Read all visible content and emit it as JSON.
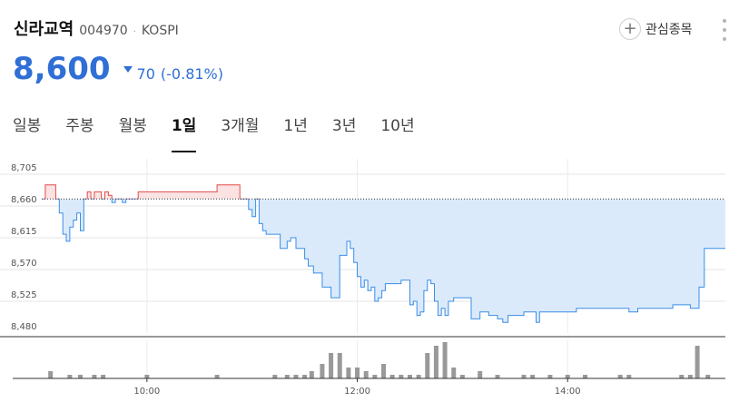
{
  "header": {
    "name": "신라교역",
    "code": "004970",
    "separator": "·",
    "market": "KOSPI",
    "favorite_icon": "plus-icon",
    "favorite_label": "관심종목",
    "more_icon": "kebab-menu-icon"
  },
  "quote": {
    "price": "8,600",
    "direction": "down",
    "change": "70",
    "change_pct": "(-0.81%)",
    "color": "#2f6fd6"
  },
  "tabs": [
    {
      "label": "일봉",
      "active": false
    },
    {
      "label": "주봉",
      "active": false
    },
    {
      "label": "월봉",
      "active": false
    },
    {
      "label": "1일",
      "active": true
    },
    {
      "label": "3개월",
      "active": false
    },
    {
      "label": "1년",
      "active": false
    },
    {
      "label": "3년",
      "active": false
    },
    {
      "label": "10년",
      "active": false
    }
  ],
  "chart_data": {
    "type": "line",
    "title": "",
    "xlabel": "",
    "ylabel": "",
    "reference_price": 8670,
    "ylim": [
      8480,
      8705
    ],
    "y_ticks": [
      "8,705",
      "8,660",
      "8,615",
      "8,570",
      "8,525",
      "8,480"
    ],
    "y_tick_values": [
      8705,
      8660,
      8615,
      8570,
      8525,
      8480
    ],
    "x_ticks": [
      "10:00",
      "12:00",
      "14:00"
    ],
    "x_tick_minutes": [
      600,
      720,
      840
    ],
    "x_range_minutes": [
      540,
      930
    ],
    "grid": true,
    "above_color": "#e24b4b",
    "above_fill": "#fbe3e3",
    "below_color": "#3a8ee6",
    "below_fill": "#dbeafb",
    "volume_color": "#999999",
    "series": [
      {
        "x": [
          540,
          542,
          544,
          548,
          550,
          552,
          554,
          556,
          558,
          560,
          562,
          564,
          566,
          568,
          570,
          572,
          574,
          576,
          578,
          580,
          582,
          584,
          586,
          588,
          590,
          592,
          595,
          600,
          620,
          640,
          650,
          653,
          656,
          658,
          660,
          662,
          664,
          666,
          668,
          671,
          676,
          680,
          682,
          685,
          688,
          690,
          692,
          695,
          700,
          705,
          710,
          712,
          714,
          716,
          718,
          720,
          722,
          724,
          726,
          728,
          730,
          732,
          734,
          736,
          740,
          745,
          750,
          752,
          754,
          756,
          758,
          760,
          762,
          764,
          766,
          768,
          770,
          772,
          775,
          780,
          785,
          790,
          795,
          800,
          803,
          806,
          810,
          815,
          820,
          822,
          824,
          826,
          830,
          835,
          840,
          845,
          850,
          860,
          870,
          875,
          880,
          890,
          900,
          910,
          915,
          918,
          920,
          930
        ],
        "y": [
          8670,
          8690,
          8690,
          8670,
          8650,
          8620,
          8610,
          8630,
          8640,
          8650,
          8625,
          8670,
          8680,
          8670,
          8680,
          8680,
          8670,
          8680,
          8675,
          8665,
          8670,
          8670,
          8665,
          8670,
          8670,
          8670,
          8680,
          8680,
          8680,
          8690,
          8690,
          8670,
          8670,
          8655,
          8645,
          8670,
          8635,
          8625,
          8620,
          8620,
          8600,
          8610,
          8615,
          8600,
          8600,
          8585,
          8575,
          8565,
          8545,
          8530,
          8590,
          8590,
          8610,
          8600,
          8580,
          8560,
          8545,
          8555,
          8540,
          8545,
          8525,
          8530,
          8540,
          8550,
          8550,
          8555,
          8520,
          8525,
          8505,
          8510,
          8540,
          8555,
          8550,
          8525,
          8505,
          8515,
          8505,
          8525,
          8530,
          8530,
          8500,
          8510,
          8505,
          8500,
          8495,
          8505,
          8505,
          8510,
          8510,
          8495,
          8510,
          8510,
          8510,
          8510,
          8510,
          8515,
          8515,
          8515,
          8515,
          8510,
          8515,
          8515,
          8520,
          8515,
          8545,
          8600,
          8600,
          8600
        ]
      }
    ],
    "volume": {
      "x": [
        545,
        556,
        562,
        570,
        575,
        600,
        640,
        673,
        680,
        685,
        690,
        694,
        700,
        705,
        710,
        715,
        720,
        725,
        730,
        735,
        740,
        745,
        750,
        755,
        760,
        765,
        770,
        775,
        780,
        790,
        800,
        815,
        820,
        830,
        840,
        850,
        870,
        875,
        905,
        910,
        914,
        920
      ],
      "values": [
        2,
        1,
        1,
        1,
        1,
        1,
        1,
        1,
        1,
        1,
        1,
        2,
        4,
        7,
        7,
        3,
        3,
        2,
        1,
        4,
        1,
        1,
        1,
        1,
        7,
        9,
        10,
        3,
        1,
        2,
        1,
        1,
        1,
        1,
        1,
        1,
        1,
        1,
        1,
        1,
        9,
        1
      ]
    }
  }
}
